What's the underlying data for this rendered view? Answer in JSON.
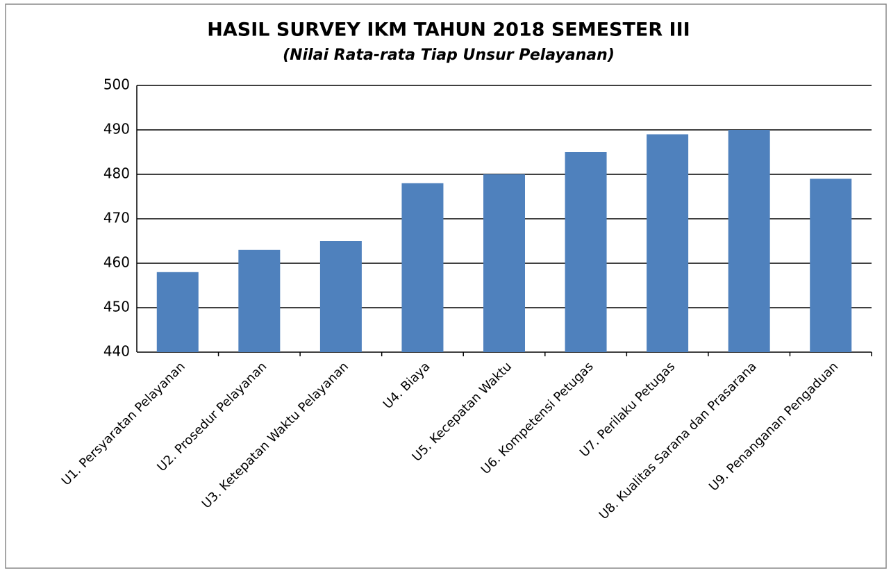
{
  "chart_data": {
    "type": "bar",
    "title": "HASIL SURVEY IKM TAHUN 2018 SEMESTER III",
    "subtitle": "(Nilai Rata-rata Tiap Unsur Pelayanan)",
    "categories": [
      "U1. Persyaratan Pelayanan",
      "U2. Prosedur Pelayanan",
      "U3. Ketepatan Waktu Pelayanan",
      "U4. Biaya",
      "U5. Kecepatan Waktu",
      "U6. Kompetensi Petugas",
      "U7. Perilaku Petugas",
      "U8. Kualitas Sarana dan Prasarana",
      "U9. Penanganan Pengaduan"
    ],
    "values": [
      458,
      463,
      465,
      478,
      480,
      485,
      489,
      490,
      479
    ],
    "color": "#4f81bd",
    "ylim": [
      440,
      500
    ],
    "yticks": [
      440,
      450,
      460,
      470,
      480,
      490,
      500
    ],
    "grid": true
  }
}
